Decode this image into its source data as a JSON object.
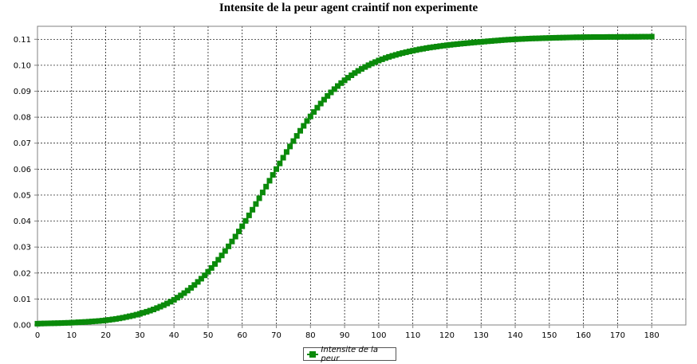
{
  "chart_data": {
    "type": "line",
    "title": "Intensite de la peur agent craintif non experimente",
    "xlabel": "",
    "ylabel": "",
    "xlim": [
      0,
      190
    ],
    "ylim": [
      0,
      0.115
    ],
    "x_ticks": [
      "0",
      "10",
      "20",
      "30",
      "40",
      "50",
      "60",
      "70",
      "80",
      "90",
      "100",
      "110",
      "120",
      "130",
      "140",
      "150",
      "160",
      "170",
      "180"
    ],
    "y_ticks": [
      "0.00",
      "0.01",
      "0.02",
      "0.03",
      "0.04",
      "0.05",
      "0.06",
      "0.07",
      "0.08",
      "0.09",
      "0.10",
      "0.11"
    ],
    "grid": true,
    "legend_position": "bottom-center",
    "series": [
      {
        "name": "Intensite de la peur",
        "color": "#0a8a0a",
        "x": [
          0,
          10,
          20,
          25,
          30,
          35,
          40,
          45,
          50,
          55,
          60,
          65,
          70,
          75,
          80,
          85,
          90,
          95,
          100,
          105,
          110,
          115,
          120,
          130,
          140,
          150,
          160,
          170,
          180
        ],
        "values": [
          0.0005,
          0.0009,
          0.0018,
          0.0028,
          0.0043,
          0.0065,
          0.0097,
          0.0143,
          0.0205,
          0.0285,
          0.038,
          0.0488,
          0.06,
          0.0708,
          0.0803,
          0.0882,
          0.0942,
          0.0986,
          0.1018,
          0.104,
          0.1056,
          0.1068,
          0.1077,
          0.109,
          0.11,
          0.1105,
          0.1108,
          0.1109,
          0.111
        ]
      }
    ]
  }
}
